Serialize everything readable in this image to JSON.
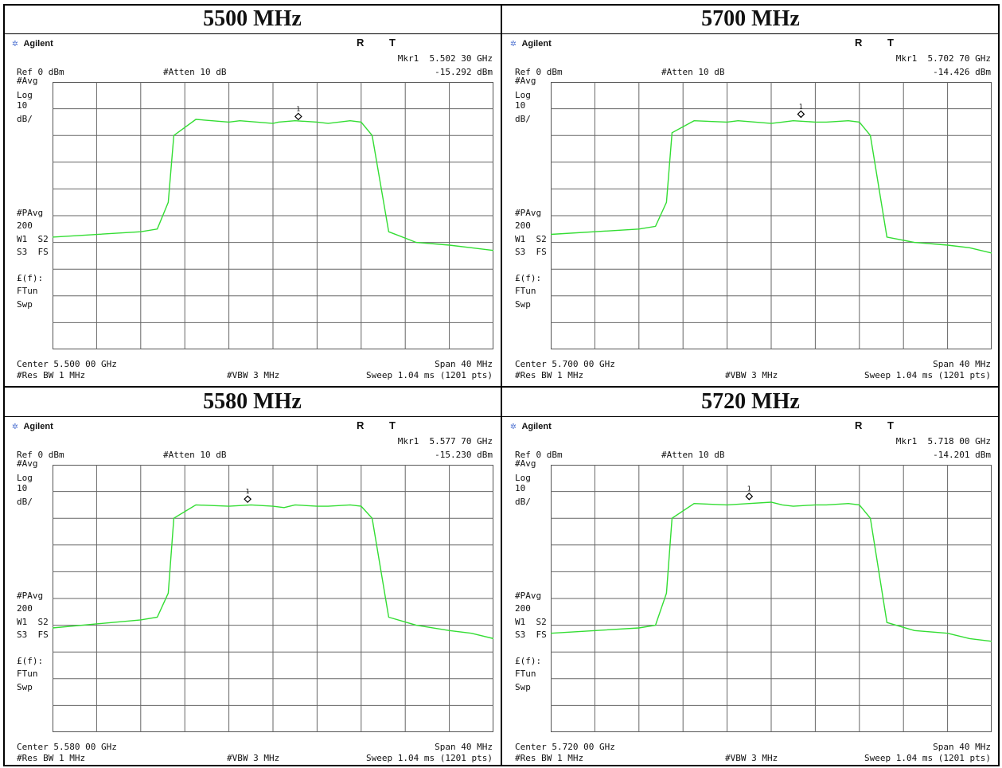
{
  "panels": [
    {
      "title": "5500 MHz",
      "brand": "Agilent",
      "rt": "R T",
      "mkr": "Mkr1  5.502 30 GHz",
      "mkr_level": "-15.292 dBm",
      "ref": "Ref 0 dBm",
      "atten": "#Atten 10 dB",
      "avg": "#Avg",
      "log": "Log",
      "scale": "10",
      "scale_unit": "dB/",
      "pavg": "#PAvg",
      "pavg_n": "200",
      "w1s2": "W1  S2",
      "s3fs": "S3  FS",
      "ef": "£(f):",
      "ftun": "FTun",
      "swp": "Swp",
      "center": "Center 5.500 00 GHz",
      "span": "Span 40 MHz",
      "rbw": "#Res BW 1 MHz",
      "vbw": "#VBW 3 MHz",
      "sweep": "Sweep 1.04 ms (1201 pts)",
      "marker_label": "1"
    },
    {
      "title": "5700 MHz",
      "brand": "Agilent",
      "rt": "R T",
      "mkr": "Mkr1  5.702 70 GHz",
      "mkr_level": "-14.426 dBm",
      "ref": "Ref 0 dBm",
      "atten": "#Atten 10 dB",
      "avg": "#Avg",
      "log": "Log",
      "scale": "10",
      "scale_unit": "dB/",
      "pavg": "#PAvg",
      "pavg_n": "200",
      "w1s2": "W1  S2",
      "s3fs": "S3  FS",
      "ef": "£(f):",
      "ftun": "FTun",
      "swp": "Swp",
      "center": "Center 5.700 00 GHz",
      "span": "Span 40 MHz",
      "rbw": "#Res BW 1 MHz",
      "vbw": "#VBW 3 MHz",
      "sweep": "Sweep 1.04 ms (1201 pts)",
      "marker_label": "1"
    },
    {
      "title": "5580 MHz",
      "brand": "Agilent",
      "rt": "R T",
      "mkr": "Mkr1  5.577 70 GHz",
      "mkr_level": "-15.230 dBm",
      "ref": "Ref 0 dBm",
      "atten": "#Atten 10 dB",
      "avg": "#Avg",
      "log": "Log",
      "scale": "10",
      "scale_unit": "dB/",
      "pavg": "#PAvg",
      "pavg_n": "200",
      "w1s2": "W1  S2",
      "s3fs": "S3  FS",
      "ef": "£(f):",
      "ftun": "FTun",
      "swp": "Swp",
      "center": "Center 5.580 00 GHz",
      "span": "Span 40 MHz",
      "rbw": "#Res BW 1 MHz",
      "vbw": "#VBW 3 MHz",
      "sweep": "Sweep 1.04 ms (1201 pts)",
      "marker_label": "1"
    },
    {
      "title": "5720 MHz",
      "brand": "Agilent",
      "rt": "R T",
      "mkr": "Mkr1  5.718 00 GHz",
      "mkr_level": "-14.201 dBm",
      "ref": "Ref 0 dBm",
      "atten": "#Atten 10 dB",
      "avg": "#Avg",
      "log": "Log",
      "scale": "10",
      "scale_unit": "dB/",
      "pavg": "#PAvg",
      "pavg_n": "200",
      "w1s2": "W1  S2",
      "s3fs": "S3  FS",
      "ef": "£(f):",
      "ftun": "FTun",
      "swp": "Swp",
      "center": "Center 5.720 00 GHz",
      "span": "Span 40 MHz",
      "rbw": "#Res BW 1 MHz",
      "vbw": "#VBW 3 MHz",
      "sweep": "Sweep 1.04 ms (1201 pts)",
      "marker_label": "1"
    }
  ],
  "chart_data": [
    {
      "type": "line",
      "title": "5500 MHz",
      "xlabel": "",
      "ylabel": "",
      "x_unit": "MHz offset from center",
      "y_unit": "dBm",
      "xlim": [
        -20,
        20
      ],
      "ylim": [
        -100,
        0
      ],
      "grid": true,
      "trace_color": "#33dd33",
      "series": [
        {
          "x": [
            -20,
            -12,
            -10.5,
            -9.5,
            -9,
            -7,
            -4,
            -3,
            0,
            0.5,
            2,
            4,
            5,
            7,
            8,
            9,
            10.5,
            13,
            16,
            18,
            20
          ],
          "y": [
            -58,
            -56,
            -55,
            -45,
            -20,
            -14,
            -15,
            -14.5,
            -15.5,
            -15,
            -14.5,
            -15,
            -15.5,
            -14.5,
            -15,
            -20,
            -56,
            -60,
            -61,
            -62,
            -63
          ]
        }
      ],
      "marker": {
        "x": 2.3,
        "y": -15.292
      }
    },
    {
      "type": "line",
      "title": "5700 MHz",
      "xlabel": "",
      "ylabel": "",
      "x_unit": "MHz offset from center",
      "y_unit": "dBm",
      "xlim": [
        -20,
        20
      ],
      "ylim": [
        -100,
        0
      ],
      "grid": true,
      "trace_color": "#33dd33",
      "series": [
        {
          "x": [
            -20,
            -12,
            -10.5,
            -9.5,
            -9,
            -7,
            -4,
            -3,
            0,
            1,
            2,
            4,
            5,
            7,
            8,
            9,
            10.5,
            13,
            16,
            18,
            20
          ],
          "y": [
            -57,
            -55,
            -54,
            -45,
            -19,
            -14.5,
            -15,
            -14.5,
            -15.5,
            -15,
            -14.5,
            -15,
            -15,
            -14.5,
            -15,
            -20,
            -58,
            -60,
            -61,
            -62,
            -64
          ]
        }
      ],
      "marker": {
        "x": 2.7,
        "y": -14.426
      }
    },
    {
      "type": "line",
      "title": "5580 MHz",
      "xlabel": "",
      "ylabel": "",
      "x_unit": "MHz offset from center",
      "y_unit": "dBm",
      "xlim": [
        -20,
        20
      ],
      "ylim": [
        -100,
        0
      ],
      "grid": true,
      "trace_color": "#33dd33",
      "series": [
        {
          "x": [
            -20,
            -12,
            -10.5,
            -9.5,
            -9,
            -7,
            -4,
            -2,
            0,
            1,
            2,
            4,
            5,
            7,
            8,
            9,
            10.5,
            13,
            16,
            18,
            20
          ],
          "y": [
            -61,
            -58,
            -57,
            -48,
            -20,
            -15,
            -15.5,
            -15,
            -15.5,
            -16,
            -15,
            -15.5,
            -15.5,
            -15,
            -15.5,
            -20,
            -57,
            -60,
            -62,
            -63,
            -65
          ]
        }
      ],
      "marker": {
        "x": -2.3,
        "y": -15.23
      }
    },
    {
      "type": "line",
      "title": "5720 MHz",
      "xlabel": "",
      "ylabel": "",
      "x_unit": "MHz offset from center",
      "y_unit": "dBm",
      "xlim": [
        -20,
        20
      ],
      "ylim": [
        -100,
        0
      ],
      "grid": true,
      "trace_color": "#33dd33",
      "series": [
        {
          "x": [
            -20,
            -12,
            -10.5,
            -9.5,
            -9,
            -7,
            -4,
            -2,
            0,
            1,
            2,
            4,
            5,
            7,
            8,
            9,
            10.5,
            13,
            16,
            18,
            20
          ],
          "y": [
            -63,
            -61,
            -60,
            -48,
            -20,
            -14.5,
            -15,
            -14.5,
            -14,
            -15,
            -15.5,
            -15,
            -15,
            -14.5,
            -15,
            -20,
            -59,
            -62,
            -63,
            -65,
            -66
          ]
        }
      ],
      "marker": {
        "x": -2.0,
        "y": -14.201
      }
    }
  ]
}
